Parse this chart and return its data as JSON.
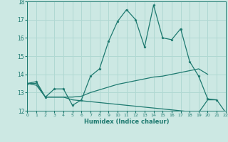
{
  "xlabel": "Humidex (Indice chaleur)",
  "xlim": [
    0,
    22
  ],
  "ylim": [
    12,
    18
  ],
  "yticks": [
    12,
    13,
    14,
    15,
    16,
    17,
    18
  ],
  "xticks": [
    0,
    1,
    2,
    3,
    4,
    5,
    6,
    7,
    8,
    9,
    10,
    11,
    12,
    13,
    14,
    15,
    16,
    17,
    18,
    19,
    20,
    21,
    22
  ],
  "bg_color": "#cce8e3",
  "grid_color": "#b0d8d2",
  "line_color": "#1e7a70",
  "lines": [
    {
      "x": [
        0,
        1,
        2,
        3,
        4,
        5,
        6,
        7,
        8,
        9,
        10,
        11,
        12,
        13,
        14,
        15,
        16,
        17,
        18,
        19,
        20,
        21
      ],
      "y": [
        13.5,
        13.6,
        12.75,
        13.2,
        13.2,
        12.3,
        12.6,
        13.9,
        14.3,
        15.8,
        16.9,
        17.55,
        17.0,
        15.5,
        17.8,
        16.0,
        15.9,
        16.5,
        14.7,
        13.9,
        12.65,
        12.6
      ],
      "marker": "*",
      "ms": 2.5,
      "lw": 0.9
    },
    {
      "x": [
        0,
        1,
        2,
        3,
        4,
        5,
        6,
        7,
        8,
        9,
        10,
        11,
        12,
        13,
        14,
        15,
        16,
        17,
        18,
        19,
        20
      ],
      "y": [
        13.5,
        13.5,
        12.75,
        12.75,
        12.75,
        12.75,
        12.8,
        13.0,
        13.15,
        13.3,
        13.45,
        13.55,
        13.65,
        13.75,
        13.85,
        13.9,
        14.0,
        14.1,
        14.2,
        14.3,
        14.0
      ],
      "marker": null,
      "ms": 0,
      "lw": 0.9
    },
    {
      "x": [
        0,
        1,
        2,
        3,
        4,
        5,
        6,
        7,
        8,
        9,
        10,
        11,
        12,
        13,
        14,
        15,
        16,
        17,
        18,
        19,
        20,
        21,
        22
      ],
      "y": [
        13.5,
        13.4,
        12.75,
        12.75,
        12.75,
        12.6,
        12.55,
        12.5,
        12.45,
        12.4,
        12.35,
        12.3,
        12.25,
        12.2,
        12.15,
        12.1,
        12.05,
        12.0,
        11.95,
        11.9,
        12.6,
        12.6,
        11.9
      ],
      "marker": null,
      "ms": 0,
      "lw": 0.9
    }
  ]
}
